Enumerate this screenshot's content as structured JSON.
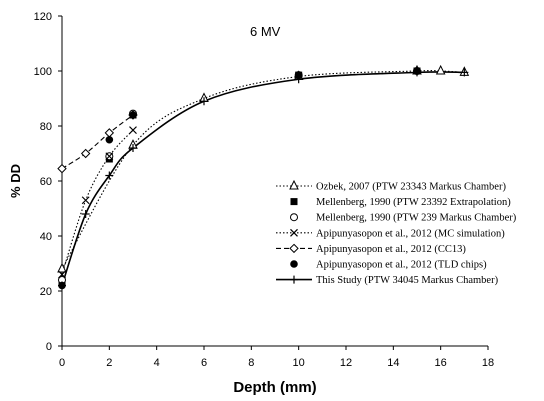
{
  "chart_data": {
    "type": "line",
    "annotation": "6 MV",
    "xlabel": "Depth (mm)",
    "ylabel": "% DD",
    "xlim": [
      0,
      18
    ],
    "ylim": [
      0,
      120
    ],
    "x_ticks": [
      0,
      2,
      4,
      6,
      8,
      10,
      12,
      14,
      16,
      18
    ],
    "y_ticks": [
      0,
      20,
      40,
      60,
      80,
      100,
      120
    ],
    "grid": false,
    "legend_position": "right",
    "series": [
      {
        "name": "Ozbek, 2007 (PTW 23343 Markus Chamber)",
        "marker": "triangle-open",
        "line": "dotted",
        "x": [
          0,
          3,
          6,
          10,
          15,
          16,
          17
        ],
        "y": [
          28,
          73,
          90,
          98,
          100,
          100,
          99.5
        ]
      },
      {
        "name": "Mellenberg,  1990 (PTW 23392 Extrapolation)",
        "marker": "square-filled",
        "line": "none",
        "x": [
          0,
          2,
          3,
          10,
          15
        ],
        "y": [
          23,
          68,
          84,
          98.5,
          100
        ]
      },
      {
        "name": "Mellenberg,  1990 (PTW 239 Markus Chamber)",
        "marker": "circle-open",
        "line": "none",
        "x": [
          0,
          2,
          3,
          10,
          15
        ],
        "y": [
          24,
          69,
          84.5,
          98.5,
          100
        ]
      },
      {
        "name": "Apipunyasopon  et al., 2012 (MC simulation)",
        "marker": "x",
        "line": "dotted",
        "x": [
          0,
          1,
          2,
          3
        ],
        "y": [
          26,
          53,
          69,
          78.5
        ]
      },
      {
        "name": "Apipunyasopon  et al., 2012 (CC13)",
        "marker": "diamond-open",
        "line": "dashed",
        "x": [
          0,
          1,
          2,
          3
        ],
        "y": [
          64.5,
          70,
          77.5,
          84
        ]
      },
      {
        "name": "Apipunyasopon  et al., 2012 (TLD chips)",
        "marker": "circle-filled",
        "line": "none",
        "x": [
          0,
          2,
          3,
          10,
          15
        ],
        "y": [
          22,
          75,
          84,
          98.5,
          100
        ]
      },
      {
        "name": "This Study (PTW 34045 Markus Chamber)",
        "marker": "plus",
        "line": "solid",
        "x": [
          0,
          1,
          2,
          3,
          6,
          10,
          15,
          17
        ],
        "y": [
          22,
          48,
          62,
          72,
          89,
          97,
          99.5,
          99.5
        ]
      }
    ]
  }
}
